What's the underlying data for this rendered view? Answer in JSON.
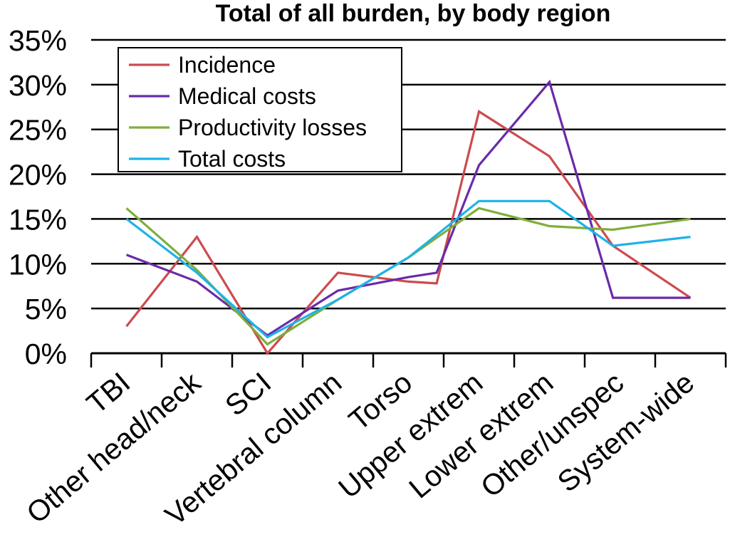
{
  "chart_data": {
    "type": "line",
    "title": "Total of all burden, by body region",
    "xlabel": "",
    "ylabel": "",
    "categories": [
      "TBI",
      "Other head/neck",
      "SCI",
      "Vertebral column",
      "Torso",
      "Upper extrem",
      "Lower extrem",
      "Other/unspec",
      "System-wide"
    ],
    "ylim": [
      0,
      35
    ],
    "yticks": [
      0,
      5,
      10,
      15,
      20,
      25,
      30,
      35
    ],
    "ytick_labels": [
      "0%",
      "5%",
      "10%",
      "15%",
      "20%",
      "25%",
      "30%",
      "35%"
    ],
    "grid": "horizontal",
    "legend_position": "top-left",
    "series": [
      {
        "name": "Incidence",
        "color": "#cc4b4f",
        "x": [
          0.5,
          1.5,
          2.5,
          3.5,
          4.5,
          4.9,
          5.5,
          6.5,
          7.4,
          8.5
        ],
        "values": [
          3,
          13,
          0,
          9,
          8,
          7.8,
          27,
          22,
          12,
          6.2
        ]
      },
      {
        "name": "Medical costs",
        "color": "#6a2ba8",
        "x": [
          0.5,
          1.5,
          2.5,
          3.5,
          4.5,
          4.9,
          5.5,
          6.5,
          7.4,
          8.5
        ],
        "values": [
          11,
          8,
          2,
          7,
          8.5,
          9,
          21,
          30.3,
          6.2,
          6.2
        ]
      },
      {
        "name": "Productivity losses",
        "color": "#7fae3a",
        "x": [
          0.5,
          1.5,
          2.5,
          3.5,
          4.5,
          5.5,
          6.5,
          7.4,
          8.5
        ],
        "values": [
          16.2,
          9.3,
          1,
          6,
          10.7,
          16.2,
          14.2,
          13.8,
          15
        ]
      },
      {
        "name": "Total costs",
        "color": "#1eb2e8",
        "x": [
          0.5,
          1.5,
          2.5,
          3.5,
          4.5,
          5.5,
          6.5,
          7.4,
          8.5
        ],
        "values": [
          15,
          9,
          1.8,
          6,
          10.7,
          17,
          17,
          12,
          13
        ]
      }
    ]
  }
}
